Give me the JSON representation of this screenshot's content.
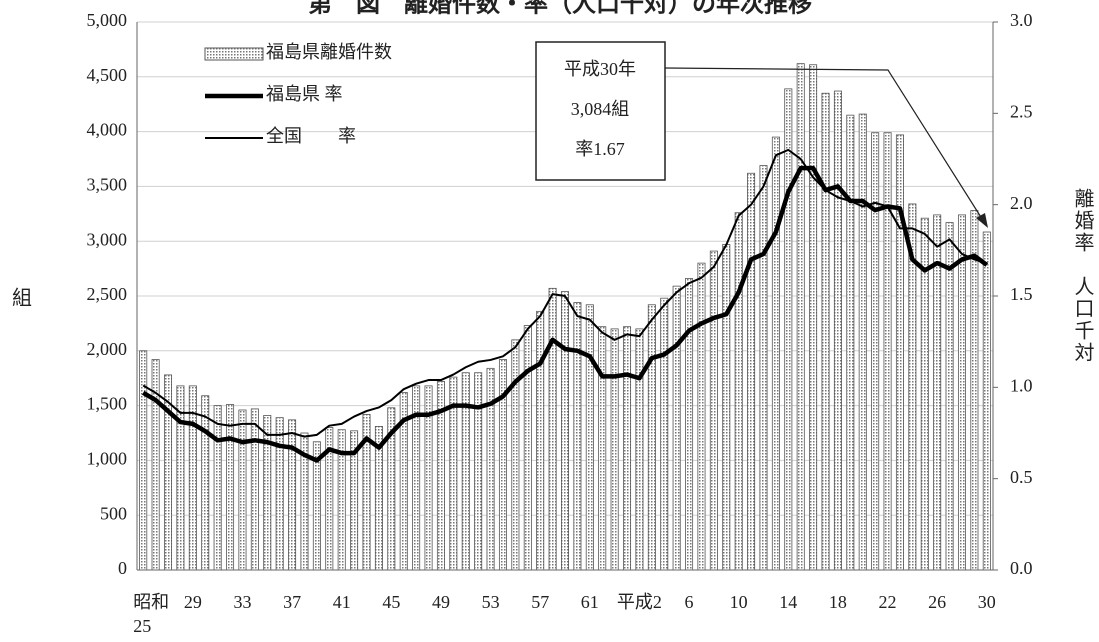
{
  "chart_data": {
    "type": "bar_line",
    "title": "第　図　離婚件数・率（人口千対）の年次推移",
    "y_label": "組",
    "y2_label": "離婚率　人口千対",
    "categories": [
      "昭和25",
      null,
      null,
      null,
      "29",
      null,
      null,
      null,
      "33",
      null,
      null,
      null,
      "37",
      null,
      null,
      null,
      "41",
      null,
      null,
      null,
      "45",
      null,
      null,
      null,
      "49",
      null,
      null,
      null,
      "53",
      null,
      null,
      null,
      "57",
      null,
      null,
      null,
      "61",
      null,
      null,
      null,
      "平成2",
      null,
      null,
      null,
      "6",
      null,
      null,
      null,
      "10",
      null,
      null,
      null,
      "14",
      null,
      null,
      null,
      "18",
      null,
      null,
      null,
      "22",
      null,
      null,
      null,
      "26",
      null,
      null,
      null,
      "30"
    ],
    "series": [
      {
        "name": "福島県離婚件数",
        "kind": "bar",
        "color": "#d0d0d0",
        "values": [
          2000,
          1920,
          1780,
          1680,
          1680,
          1590,
          1500,
          1510,
          1460,
          1470,
          1410,
          1390,
          1370,
          1250,
          1170,
          1300,
          1280,
          1270,
          1420,
          1310,
          1480,
          1620,
          1680,
          1680,
          1720,
          1760,
          1800,
          1800,
          1840,
          1920,
          2100,
          2230,
          2360,
          2570,
          2540,
          2440,
          2420,
          2220,
          2200,
          2220,
          2200,
          2420,
          2480,
          2590,
          2660,
          2800,
          2910,
          2970,
          3260,
          3620,
          3690,
          3950,
          4390,
          4620,
          4610,
          4350,
          4370,
          4150,
          4160,
          3990,
          3990,
          3970,
          3340,
          3210,
          3240,
          3170,
          3240,
          3280,
          3084
        ]
      },
      {
        "name": "福島県 率",
        "kind": "line",
        "axis": "y2",
        "color": "#000000",
        "width": 4.5,
        "values": [
          0.97,
          0.93,
          0.87,
          0.81,
          0.8,
          0.76,
          0.71,
          0.72,
          0.7,
          0.71,
          0.7,
          0.68,
          0.67,
          0.63,
          0.6,
          0.66,
          0.64,
          0.64,
          0.72,
          0.67,
          0.75,
          0.82,
          0.85,
          0.85,
          0.87,
          0.9,
          0.9,
          0.89,
          0.91,
          0.95,
          1.03,
          1.09,
          1.13,
          1.26,
          1.21,
          1.2,
          1.17,
          1.06,
          1.06,
          1.07,
          1.05,
          1.16,
          1.18,
          1.23,
          1.31,
          1.35,
          1.38,
          1.4,
          1.52,
          1.7,
          1.73,
          1.85,
          2.07,
          2.2,
          2.2,
          2.08,
          2.1,
          2.02,
          2.02,
          1.97,
          1.99,
          1.98,
          1.7,
          1.64,
          1.68,
          1.65,
          1.7,
          1.72,
          1.67
        ]
      },
      {
        "name": "全国　　率",
        "kind": "line",
        "axis": "y2",
        "color": "#000000",
        "width": 2,
        "values": [
          1.01,
          0.97,
          0.92,
          0.86,
          0.86,
          0.84,
          0.8,
          0.79,
          0.8,
          0.8,
          0.74,
          0.74,
          0.75,
          0.73,
          0.74,
          0.79,
          0.8,
          0.84,
          0.87,
          0.89,
          0.93,
          0.99,
          1.02,
          1.04,
          1.04,
          1.07,
          1.11,
          1.14,
          1.15,
          1.17,
          1.22,
          1.32,
          1.39,
          1.51,
          1.5,
          1.39,
          1.37,
          1.3,
          1.26,
          1.29,
          1.28,
          1.37,
          1.45,
          1.52,
          1.57,
          1.6,
          1.66,
          1.78,
          1.94,
          2.0,
          2.1,
          2.27,
          2.3,
          2.25,
          2.15,
          2.08,
          2.04,
          2.02,
          1.99,
          2.01,
          1.99,
          1.87,
          1.87,
          1.84,
          1.77,
          1.81,
          1.73,
          1.7,
          1.68
        ]
      }
    ],
    "ylim": [
      0,
      5000
    ],
    "yticks": [
      0,
      {
        "value": 500,
        "label": "500"
      },
      {
        "value": 1000,
        "label": "1,000"
      },
      {
        "value": 1500,
        "label": "1,500"
      },
      {
        "value": 2000,
        "label": "2,000"
      },
      {
        "value": 2500,
        "label": "2,500"
      },
      {
        "value": 3000,
        "label": "3,000"
      },
      {
        "value": 3500,
        "label": "3,500"
      },
      {
        "value": 4000,
        "label": "4,000"
      },
      {
        "value": 4500,
        "label": "4,500"
      },
      {
        "value": 5000,
        "label": "5,000"
      }
    ],
    "y2lim": [
      0,
      3
    ],
    "y2ticks": [
      {
        "value": 0,
        "label": "0.0"
      },
      0.5,
      {
        "value": 1,
        "label": "1.0"
      },
      1.5,
      {
        "value": 2,
        "label": "2.0"
      },
      2.5,
      {
        "value": 3,
        "label": "3.0"
      }
    ],
    "grid": true,
    "legend": "top-left",
    "annotation": [
      "平成30年",
      "3,084組",
      "率1.67"
    ]
  }
}
